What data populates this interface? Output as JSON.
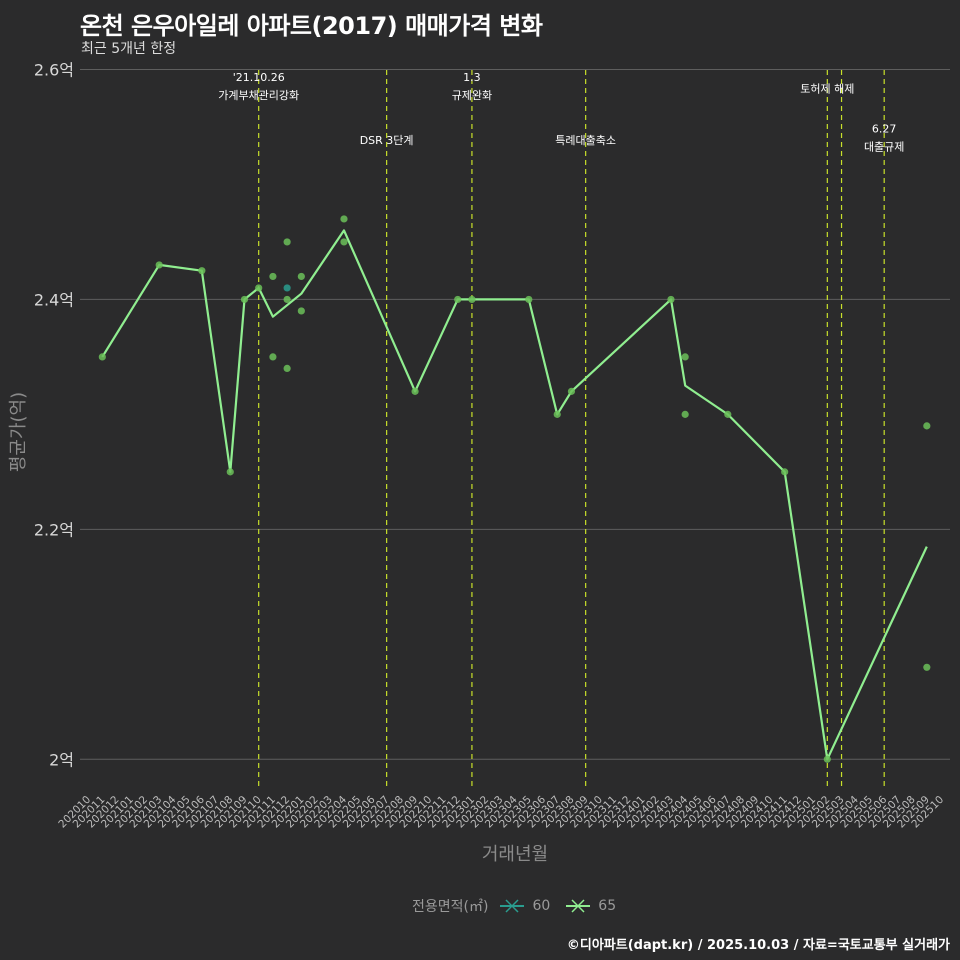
{
  "title": "온천 은우아일레 아파트(2017) 매매가격 변화",
  "subtitle": "최근 5개년 한정",
  "caption": "©디아파트(dapt.kr) / 2025.10.03 / 자료=국토교통부 실거래가",
  "colors": {
    "background": "#2b2b2c",
    "grid": "#5e5e5e",
    "line65": "#90ee90",
    "point65": "#6bbf59",
    "point60": "#2a9d8f",
    "event": "#c8e02a"
  },
  "chart_data": {
    "type": "line",
    "title": "온천 은우아일레 아파트(2017) 매매가격 변화",
    "xlabel": "거래년월",
    "ylabel": "평균가(억)",
    "ylim": [
      1.975,
      2.61
    ],
    "yticks": [
      {
        "value": 2.0,
        "label": "2억"
      },
      {
        "value": 2.2,
        "label": "2.2억"
      },
      {
        "value": 2.4,
        "label": "2.4억"
      },
      {
        "value": 2.6,
        "label": "2.6억"
      }
    ],
    "x_months": [
      "202010",
      "202011",
      "202012",
      "202101",
      "202102",
      "202103",
      "202104",
      "202105",
      "202106",
      "202107",
      "202108",
      "202109",
      "202110",
      "202111",
      "202112",
      "202201",
      "202202",
      "202203",
      "202204",
      "202205",
      "202206",
      "202207",
      "202208",
      "202209",
      "202210",
      "202211",
      "202212",
      "202301",
      "202302",
      "202303",
      "202304",
      "202305",
      "202306",
      "202307",
      "202308",
      "202309",
      "202310",
      "202311",
      "202312",
      "202401",
      "202402",
      "202403",
      "202404",
      "202405",
      "202406",
      "202407",
      "202408",
      "202409",
      "202410",
      "202411",
      "202412",
      "202501",
      "202502",
      "202503",
      "202504",
      "202505",
      "202506",
      "202507",
      "202508",
      "202509",
      "202510"
    ],
    "legend_title": "전용면적(㎡)",
    "series": [
      {
        "name": "60",
        "line": [],
        "points": [
          {
            "x": "202112",
            "y": 2.41
          }
        ]
      },
      {
        "name": "65",
        "line": [
          {
            "x": "202011",
            "y": 2.35
          },
          {
            "x": "202103",
            "y": 2.43
          },
          {
            "x": "202106",
            "y": 2.425
          },
          {
            "x": "202108",
            "y": 2.25
          },
          {
            "x": "202109",
            "y": 2.4
          },
          {
            "x": "202110",
            "y": 2.41
          },
          {
            "x": "202111",
            "y": 2.385
          },
          {
            "x": "202201",
            "y": 2.405
          },
          {
            "x": "202204",
            "y": 2.46
          },
          {
            "x": "202209",
            "y": 2.32
          },
          {
            "x": "202212",
            "y": 2.4
          },
          {
            "x": "202301",
            "y": 2.4
          },
          {
            "x": "202305",
            "y": 2.4
          },
          {
            "x": "202307",
            "y": 2.3
          },
          {
            "x": "202308",
            "y": 2.32
          },
          {
            "x": "202403",
            "y": 2.4
          },
          {
            "x": "202404",
            "y": 2.325
          },
          {
            "x": "202407",
            "y": 2.3
          },
          {
            "x": "202411",
            "y": 2.25
          },
          {
            "x": "202502",
            "y": 2.0
          },
          {
            "x": "202509",
            "y": 2.185
          }
        ],
        "points": [
          {
            "x": "202011",
            "y": 2.35
          },
          {
            "x": "202103",
            "y": 2.43
          },
          {
            "x": "202106",
            "y": 2.425
          },
          {
            "x": "202108",
            "y": 2.25
          },
          {
            "x": "202109",
            "y": 2.4
          },
          {
            "x": "202110",
            "y": 2.41
          },
          {
            "x": "202111",
            "y": 2.42
          },
          {
            "x": "202111",
            "y": 2.35
          },
          {
            "x": "202112",
            "y": 2.45
          },
          {
            "x": "202112",
            "y": 2.4
          },
          {
            "x": "202112",
            "y": 2.34
          },
          {
            "x": "202201",
            "y": 2.42
          },
          {
            "x": "202201",
            "y": 2.39
          },
          {
            "x": "202204",
            "y": 2.47
          },
          {
            "x": "202204",
            "y": 2.45
          },
          {
            "x": "202209",
            "y": 2.32
          },
          {
            "x": "202212",
            "y": 2.4
          },
          {
            "x": "202301",
            "y": 2.4
          },
          {
            "x": "202305",
            "y": 2.4
          },
          {
            "x": "202307",
            "y": 2.3
          },
          {
            "x": "202308",
            "y": 2.32
          },
          {
            "x": "202403",
            "y": 2.4
          },
          {
            "x": "202404",
            "y": 2.35
          },
          {
            "x": "202404",
            "y": 2.3
          },
          {
            "x": "202407",
            "y": 2.3
          },
          {
            "x": "202411",
            "y": 2.25
          },
          {
            "x": "202502",
            "y": 2.0
          },
          {
            "x": "202509",
            "y": 2.29
          },
          {
            "x": "202509",
            "y": 2.08
          }
        ]
      }
    ],
    "events": [
      {
        "x": "202110",
        "lines": [
          "'21.10.26",
          "가계부채관리강화"
        ],
        "y": 2.59
      },
      {
        "x": "202207",
        "lines": [
          "DSR 3단계"
        ],
        "y": 2.535
      },
      {
        "x": "202301",
        "lines": [
          "1.3",
          "규제완화"
        ],
        "y": 2.59
      },
      {
        "x": "202309",
        "lines": [
          "특례대출축소"
        ],
        "y": 2.535
      },
      {
        "x": "202502",
        "lines": [
          "토허제 해제"
        ],
        "y": 2.58
      },
      {
        "x": "202503",
        "lines": [],
        "y": null
      },
      {
        "x": "202506",
        "lines": [
          "6.27",
          "대출규제"
        ],
        "y": 2.545
      }
    ]
  }
}
